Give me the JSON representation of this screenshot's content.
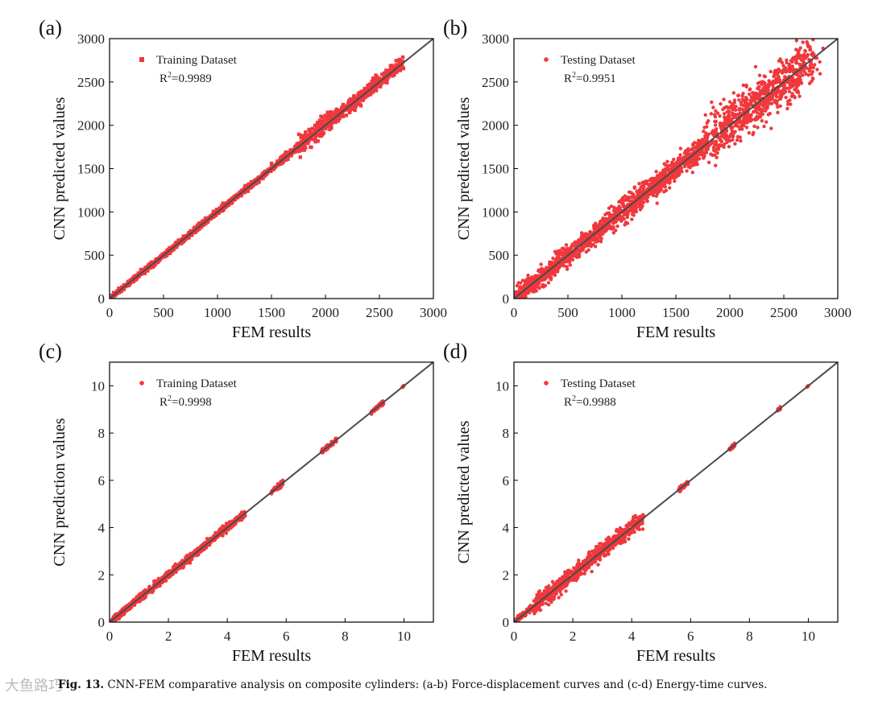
{
  "chart_data": [
    {
      "type": "scatter",
      "panel": "(a)",
      "title": "",
      "xlabel": "FEM results",
      "ylabel": "CNN predicted values",
      "xlim": [
        0,
        3000
      ],
      "ylim": [
        0,
        3000
      ],
      "xticks": [
        "0",
        "500",
        "1000",
        "1500",
        "2000",
        "2500",
        "3000"
      ],
      "yticks": [
        "0",
        "500",
        "1000",
        "1500",
        "2000",
        "2500",
        "3000"
      ],
      "legend": "Training Dataset",
      "marker": "square",
      "r2": "0.9989",
      "r2_text": "=0.9989",
      "fit_line": [
        [
          0,
          0
        ],
        [
          3000,
          3000
        ]
      ],
      "series": [
        {
          "name": "Training Dataset",
          "x_range": [
            0,
            2720
          ],
          "spread_by_range": [
            [
              0,
              1500,
              15
            ],
            [
              1500,
              1750,
              20
            ],
            [
              1750,
              2100,
              55
            ],
            [
              2100,
              2720,
              35
            ]
          ]
        }
      ]
    },
    {
      "type": "scatter",
      "panel": "(b)",
      "title": "",
      "xlabel": "FEM results",
      "ylabel": "CNN predicted values",
      "xlim": [
        0,
        3000
      ],
      "ylim": [
        0,
        3000
      ],
      "xticks": [
        "0",
        "500",
        "1000",
        "1500",
        "2000",
        "2500",
        "3000"
      ],
      "yticks": [
        "0",
        "500",
        "1000",
        "1500",
        "2000",
        "2500",
        "3000"
      ],
      "legend": "Testing Dataset",
      "marker": "circle",
      "r2": "0.9951",
      "r2_text": "=0.9951",
      "fit_line": [
        [
          0,
          0
        ],
        [
          3000,
          3000
        ]
      ],
      "series": [
        {
          "name": "Testing Dataset",
          "x_range": [
            0,
            2780
          ],
          "spread_by_range": [
            [
              0,
              900,
              55
            ],
            [
              900,
              1300,
              70
            ],
            [
              1300,
              1800,
              60
            ],
            [
              1800,
              2780,
              130
            ]
          ]
        }
      ]
    },
    {
      "type": "scatter",
      "panel": "(c)",
      "title": "",
      "xlabel": "FEM results",
      "ylabel": "CNN prediction values",
      "xlim": [
        0,
        11
      ],
      "ylim": [
        0,
        11
      ],
      "xticks": [
        "0",
        "2",
        "4",
        "6",
        "8",
        "10"
      ],
      "yticks": [
        "0",
        "2",
        "4",
        "6",
        "8",
        "10"
      ],
      "legend": "Training Dataset",
      "marker": "circle",
      "r2": "0.9998",
      "r2_text": "=0.9998",
      "fit_line": [
        [
          0,
          0
        ],
        [
          11,
          11
        ]
      ],
      "series": [
        {
          "name": "Training Dataset",
          "clusters": [
            [
              0.05,
              4.6,
              0.08
            ],
            [
              5.5,
              5.9,
              0.05
            ],
            [
              7.2,
              7.7,
              0.05
            ],
            [
              8.9,
              9.3,
              0.04
            ],
            [
              9.95,
              10.0,
              0.01
            ]
          ]
        }
      ]
    },
    {
      "type": "scatter",
      "panel": "(d)",
      "title": "",
      "xlabel": "FEM results",
      "ylabel": "CNN predicted values",
      "xlim": [
        0,
        11
      ],
      "ylim": [
        0,
        11
      ],
      "xticks": [
        "0",
        "2",
        "4",
        "6",
        "8",
        "10"
      ],
      "yticks": [
        "0",
        "2",
        "4",
        "6",
        "8",
        "10"
      ],
      "legend": "Testing Dataset",
      "marker": "circle",
      "r2": "0.9988",
      "r2_text": "=0.9988",
      "fit_line": [
        [
          0,
          0
        ],
        [
          11,
          11
        ]
      ],
      "series": [
        {
          "name": "Testing Dataset",
          "clusters": [
            [
              0.05,
              0.6,
              0.06
            ],
            [
              0.6,
              4.4,
              0.17
            ],
            [
              5.6,
              5.9,
              0.05
            ],
            [
              7.3,
              7.5,
              0.04
            ],
            [
              8.95,
              9.05,
              0.03
            ],
            [
              9.95,
              10.0,
              0.01
            ]
          ]
        }
      ]
    }
  ],
  "caption": {
    "label": "Fig. 13.",
    "text": " CNN-FEM comparative analysis on composite cylinders: (a-b) Force-displacement curves and (c-d) Energy-time curves."
  },
  "watermark": "大鱼路巧",
  "colors": {
    "points": "#f0383d",
    "line": "#4a4a4a",
    "axis": "#000000"
  }
}
